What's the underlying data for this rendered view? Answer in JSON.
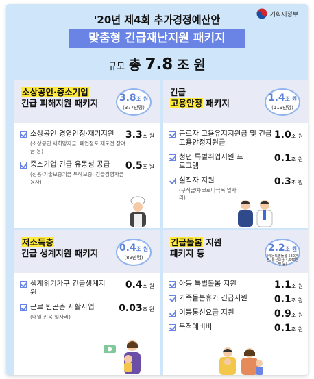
{
  "logo": {
    "text": "기획재정부"
  },
  "title": "'20년 제4회 추가경정예산안",
  "banner": "맞춤형 긴급재난지원 패키지",
  "scale": {
    "label": "규모",
    "pre": "총",
    "amount": "7.8",
    "unit": "조 원"
  },
  "panels": [
    {
      "title_hl": "소상공인·중소기업",
      "title_rest": "긴급 피해지원 패키지",
      "amount": "3.8",
      "unit": "조 원",
      "sub": "(377만명)",
      "items": [
        {
          "label": "소상공인 경영안정·재기지원",
          "note": "(소상공인 새희망자금, 폐업점포 재도전 장려금 등)",
          "amount": "3.3",
          "unit": "조 원"
        },
        {
          "label": "중소기업 긴급 유동성 공급",
          "note": "(신용·기술보증기금 특례보증, 긴급경영자금 융자)",
          "amount": "0.5",
          "unit": "조 원"
        }
      ]
    },
    {
      "title_top": "긴급",
      "title_hl": "고용안정",
      "title_rest": "패키지",
      "amount": "1.4",
      "unit": "조 원",
      "sub": "(119만명)",
      "items": [
        {
          "label": "근로자 고용유지지원금 및 긴급고용안정지원금",
          "note": "",
          "amount": "1.0",
          "unit": "조 원"
        },
        {
          "label": "청년 특별취업지원 프로그램",
          "note": "",
          "amount": "0.1",
          "unit": "조 원"
        },
        {
          "label": "실직자 지원",
          "note": "(구직급여·코로나극복 일자리)",
          "amount": "0.3",
          "unit": "조 원"
        }
      ]
    },
    {
      "title_hl": "저소득층",
      "title_rest": "긴급 생계지원 패키지",
      "amount": "0.4",
      "unit": "조 원",
      "sub": "(89만명)",
      "items": [
        {
          "label": "생계위기가구 긴급생계지원",
          "note": "",
          "amount": "0.4",
          "unit": "조 원"
        },
        {
          "label": "근로 빈곤층 자활사업",
          "note": "(내일 키움 일자리)",
          "amount": "0.03",
          "unit": "조 원"
        }
      ]
    },
    {
      "title_hl": "긴급돌봄",
      "title_hl_after": "지원",
      "title_rest": "패키지 등",
      "amount": "2.2",
      "unit": "조 원",
      "sub": "(아동특별돌봄 532만명, 통신요금 4,640만명 등)",
      "items": [
        {
          "label": "아동 특별돌봄 지원",
          "note": "",
          "amount": "1.1",
          "unit": "조 원"
        },
        {
          "label": "가족돌봄휴가 긴급지원",
          "note": "",
          "amount": "0.1",
          "unit": "조 원"
        },
        {
          "label": "이동통신요금 지원",
          "note": "",
          "amount": "0.9",
          "unit": "조 원"
        },
        {
          "label": "목적예비비",
          "note": "",
          "amount": "0.1",
          "unit": "조 원"
        }
      ]
    }
  ],
  "colors": {
    "background": "#cfe6fa",
    "banner": "#6a84e6",
    "highlight_yellow": "#ffe93b",
    "highlight_blue": "#b3cdf8",
    "bubble_text": "#5b82d9"
  },
  "icons": [
    "korea-emblem-icon",
    "checkbox-icon",
    "chef-illustration-icon",
    "office-workers-illustration-icon",
    "mother-child-illustration-icon",
    "family-illustration-icon"
  ]
}
